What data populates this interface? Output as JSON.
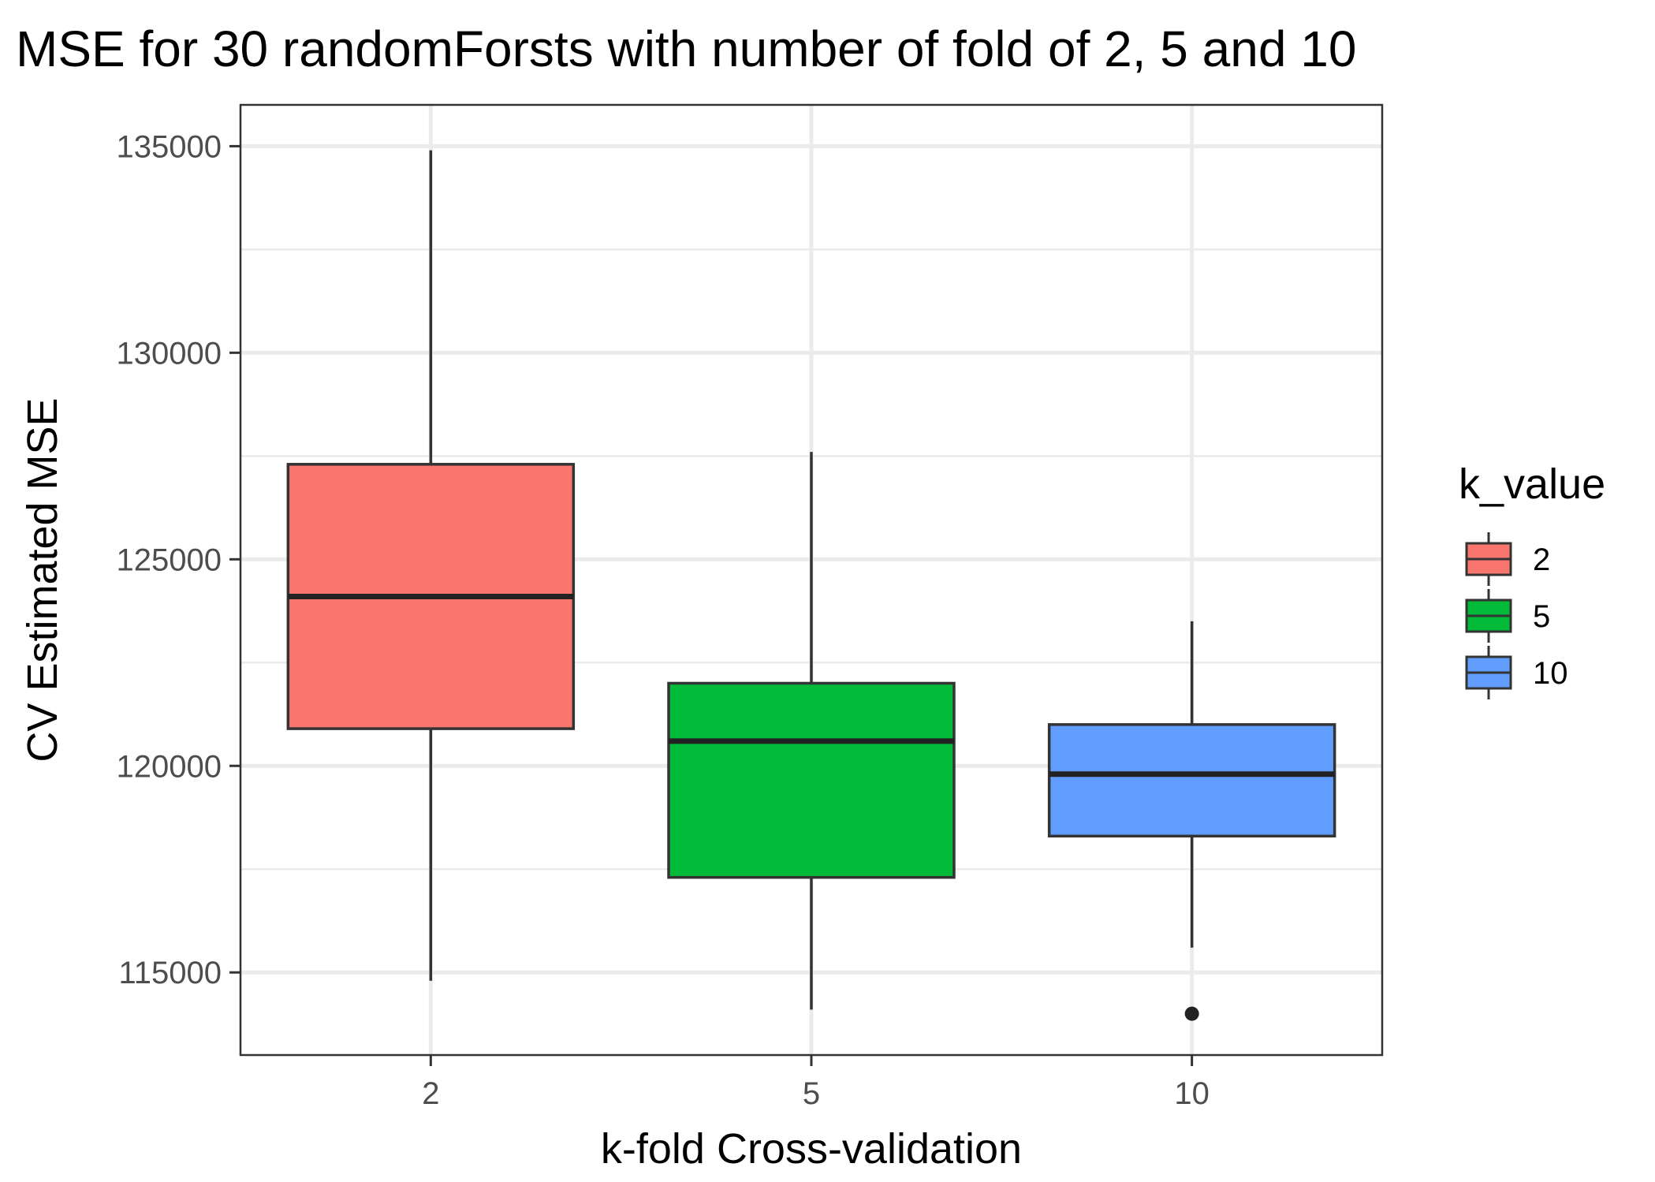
{
  "chart_data": {
    "type": "boxplot",
    "title": "MSE for 30 randomForsts with number of fold of 2, 5 and 10",
    "xlabel": "k-fold Cross-validation",
    "ylabel": "CV Estimated MSE",
    "categories": [
      "2",
      "5",
      "10"
    ],
    "yticks": [
      115000,
      120000,
      125000,
      130000,
      135000
    ],
    "ylim": [
      113000,
      136000
    ],
    "grid": true,
    "legend": {
      "title": "k_value",
      "position": "right",
      "entries": [
        "2",
        "5",
        "10"
      ]
    },
    "series": [
      {
        "name": "2",
        "color": "#F8766D",
        "min": 114800,
        "q1": 120900,
        "median": 124100,
        "q3": 127300,
        "max": 134900,
        "outliers": []
      },
      {
        "name": "5",
        "color": "#00BA38",
        "min": 114100,
        "q1": 117300,
        "median": 120600,
        "q3": 122000,
        "max": 127600,
        "outliers": []
      },
      {
        "name": "10",
        "color": "#619CFF",
        "min": 115600,
        "q1": 118300,
        "median": 119800,
        "q3": 121000,
        "max": 123500,
        "outliers": [
          114000
        ]
      }
    ]
  }
}
